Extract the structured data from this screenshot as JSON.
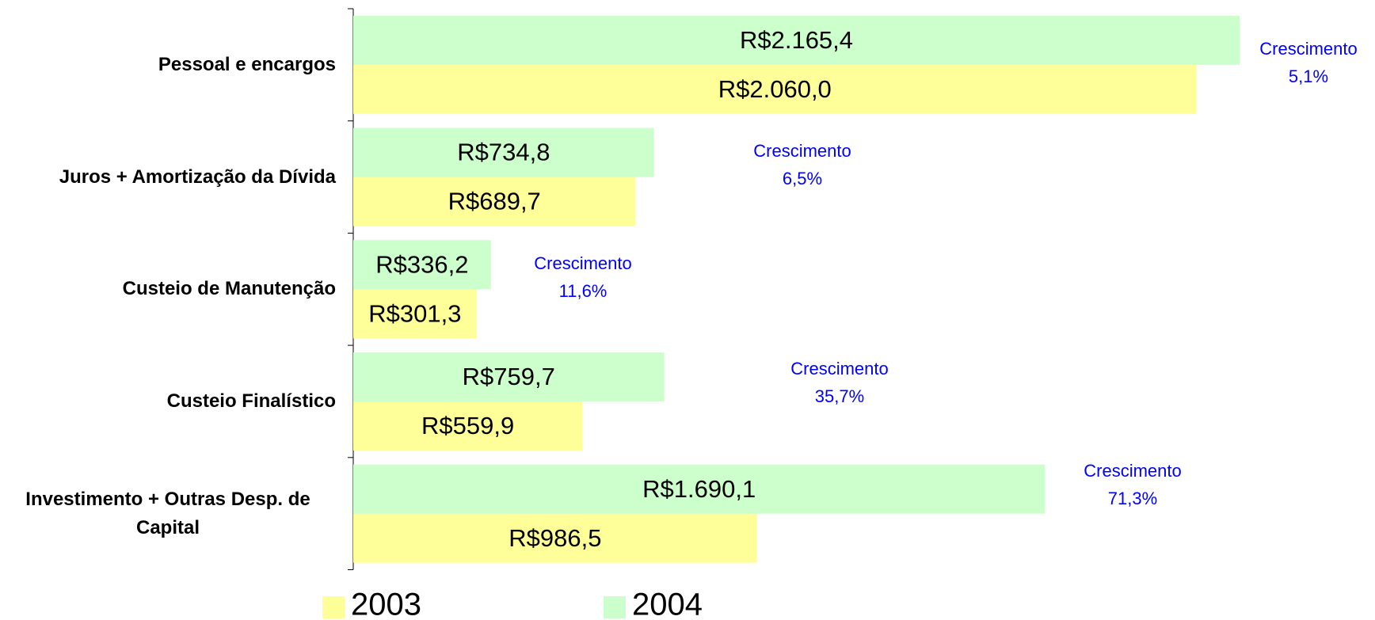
{
  "chart_data": {
    "type": "barh",
    "categories": [
      "Pessoal e encargos",
      "Juros + Amortização da Dívida",
      "Custeio de Manutenção",
      "Custeio Finalístico",
      "Investimento + Outras Desp. de Capital"
    ],
    "series": [
      {
        "name": "2003",
        "color": "#ffff99",
        "values": [
          2060.0,
          689.7,
          301.3,
          559.9,
          986.5
        ],
        "value_labels": [
          "R$2.060,0",
          "R$689,7",
          "R$301,3",
          "R$559,9",
          "R$986,5"
        ]
      },
      {
        "name": "2004",
        "color": "#ccffcc",
        "values": [
          2165.4,
          734.8,
          336.2,
          759.7,
          1690.1
        ],
        "value_labels": [
          "R$2.165,4",
          "R$734,8",
          "R$336,2",
          "R$759,7",
          "R$1.690,1"
        ]
      }
    ],
    "growth": {
      "label": "Crescimento",
      "color": "#0000ff",
      "values": [
        5.1,
        6.5,
        11.6,
        35.7,
        71.3
      ],
      "value_labels": [
        "5,1%",
        "6,5%",
        "11,6%",
        "35,7%",
        "71,3%"
      ]
    }
  }
}
